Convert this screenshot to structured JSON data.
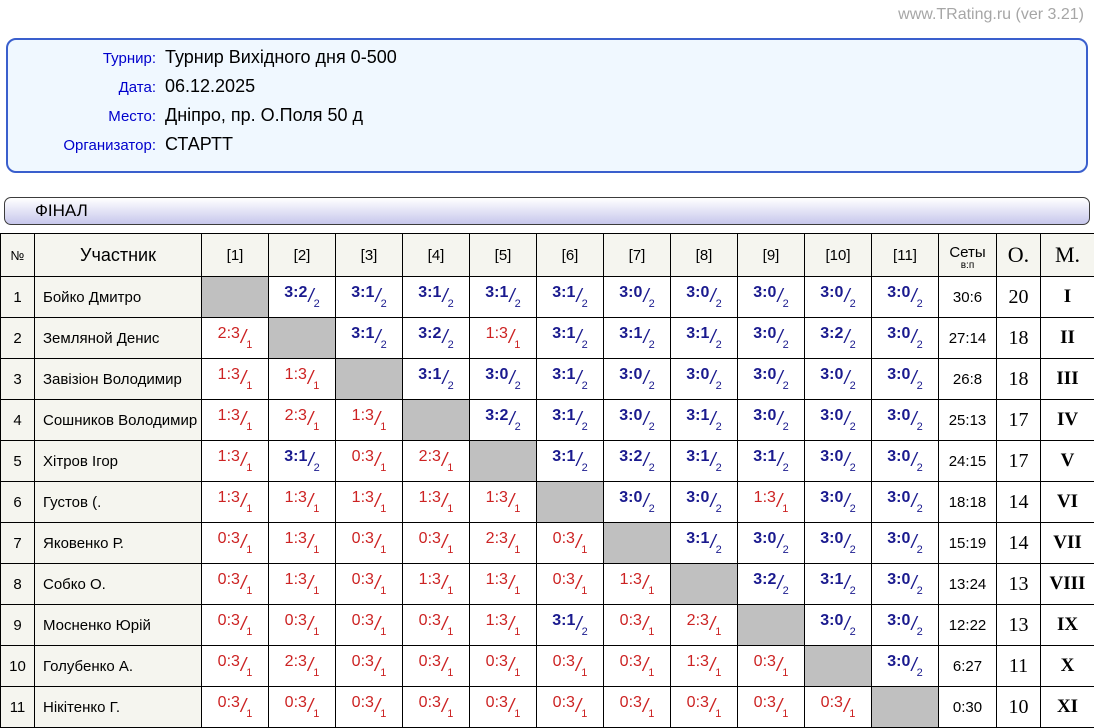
{
  "watermark": "www.TRating.ru (ver 3.21)",
  "info": {
    "rows": [
      {
        "label": "Турнир:",
        "value": "Турнир Вихідного дня 0-500"
      },
      {
        "label": "Дата:",
        "value": "06.12.2025"
      },
      {
        "label": "Место:",
        "value": "Дніпро, пр. О.Поля 50 д"
      },
      {
        "label": "Организатор:",
        "value": "СТАРТТ"
      }
    ]
  },
  "section_title": "ФІНАЛ",
  "colors": {
    "win_score": "#1a1a8e",
    "loss_score": "#cc2222",
    "diagonal_fill": "#c0c0c0",
    "label_blue": "#0000cc",
    "info_border": "#3a5fcd"
  },
  "table": {
    "headers": {
      "num": "№",
      "participant": "Участник",
      "rounds": [
        "[1]",
        "[2]",
        "[3]",
        "[4]",
        "[5]",
        "[6]",
        "[7]",
        "[8]",
        "[9]",
        "[10]",
        "[11]"
      ],
      "sets": "Сеты",
      "sets_sub": "в:п",
      "points": "О.",
      "place": "М."
    },
    "rows": [
      {
        "num": "1",
        "name": "Бойко Дмитро",
        "cells": [
          null,
          [
            "3:2",
            "2",
            "w"
          ],
          [
            "3:1",
            "2",
            "w"
          ],
          [
            "3:1",
            "2",
            "w"
          ],
          [
            "3:1",
            "2",
            "w"
          ],
          [
            "3:1",
            "2",
            "w"
          ],
          [
            "3:0",
            "2",
            "w"
          ],
          [
            "3:0",
            "2",
            "w"
          ],
          [
            "3:0",
            "2",
            "w"
          ],
          [
            "3:0",
            "2",
            "w"
          ],
          [
            "3:0",
            "2",
            "w"
          ]
        ],
        "sets": "30:6",
        "points": "20",
        "place": "I"
      },
      {
        "num": "2",
        "name": "Земляной Денис",
        "cells": [
          [
            "2:3",
            "1",
            "l"
          ],
          null,
          [
            "3:1",
            "2",
            "w"
          ],
          [
            "3:2",
            "2",
            "w"
          ],
          [
            "1:3",
            "1",
            "l"
          ],
          [
            "3:1",
            "2",
            "w"
          ],
          [
            "3:1",
            "2",
            "w"
          ],
          [
            "3:1",
            "2",
            "w"
          ],
          [
            "3:0",
            "2",
            "w"
          ],
          [
            "3:2",
            "2",
            "w"
          ],
          [
            "3:0",
            "2",
            "w"
          ]
        ],
        "sets": "27:14",
        "points": "18",
        "place": "II"
      },
      {
        "num": "3",
        "name": "Завізіон Володимир",
        "cells": [
          [
            "1:3",
            "1",
            "l"
          ],
          [
            "1:3",
            "1",
            "l"
          ],
          null,
          [
            "3:1",
            "2",
            "w"
          ],
          [
            "3:0",
            "2",
            "w"
          ],
          [
            "3:1",
            "2",
            "w"
          ],
          [
            "3:0",
            "2",
            "w"
          ],
          [
            "3:0",
            "2",
            "w"
          ],
          [
            "3:0",
            "2",
            "w"
          ],
          [
            "3:0",
            "2",
            "w"
          ],
          [
            "3:0",
            "2",
            "w"
          ]
        ],
        "sets": "26:8",
        "points": "18",
        "place": "III"
      },
      {
        "num": "4",
        "name": "Сошников Володимир",
        "cells": [
          [
            "1:3",
            "1",
            "l"
          ],
          [
            "2:3",
            "1",
            "l"
          ],
          [
            "1:3",
            "1",
            "l"
          ],
          null,
          [
            "3:2",
            "2",
            "w"
          ],
          [
            "3:1",
            "2",
            "w"
          ],
          [
            "3:0",
            "2",
            "w"
          ],
          [
            "3:1",
            "2",
            "w"
          ],
          [
            "3:0",
            "2",
            "w"
          ],
          [
            "3:0",
            "2",
            "w"
          ],
          [
            "3:0",
            "2",
            "w"
          ]
        ],
        "sets": "25:13",
        "points": "17",
        "place": "IV"
      },
      {
        "num": "5",
        "name": "Хітров Ігор",
        "cells": [
          [
            "1:3",
            "1",
            "l"
          ],
          [
            "3:1",
            "2",
            "w"
          ],
          [
            "0:3",
            "1",
            "l"
          ],
          [
            "2:3",
            "1",
            "l"
          ],
          null,
          [
            "3:1",
            "2",
            "w"
          ],
          [
            "3:2",
            "2",
            "w"
          ],
          [
            "3:1",
            "2",
            "w"
          ],
          [
            "3:1",
            "2",
            "w"
          ],
          [
            "3:0",
            "2",
            "w"
          ],
          [
            "3:0",
            "2",
            "w"
          ]
        ],
        "sets": "24:15",
        "points": "17",
        "place": "V"
      },
      {
        "num": "6",
        "name": "Густов (.",
        "cells": [
          [
            "1:3",
            "1",
            "l"
          ],
          [
            "1:3",
            "1",
            "l"
          ],
          [
            "1:3",
            "1",
            "l"
          ],
          [
            "1:3",
            "1",
            "l"
          ],
          [
            "1:3",
            "1",
            "l"
          ],
          null,
          [
            "3:0",
            "2",
            "w"
          ],
          [
            "3:0",
            "2",
            "w"
          ],
          [
            "1:3",
            "1",
            "l"
          ],
          [
            "3:0",
            "2",
            "w"
          ],
          [
            "3:0",
            "2",
            "w"
          ]
        ],
        "sets": "18:18",
        "points": "14",
        "place": "VI"
      },
      {
        "num": "7",
        "name": "Яковенко Р.",
        "cells": [
          [
            "0:3",
            "1",
            "l"
          ],
          [
            "1:3",
            "1",
            "l"
          ],
          [
            "0:3",
            "1",
            "l"
          ],
          [
            "0:3",
            "1",
            "l"
          ],
          [
            "2:3",
            "1",
            "l"
          ],
          [
            "0:3",
            "1",
            "l"
          ],
          null,
          [
            "3:1",
            "2",
            "w"
          ],
          [
            "3:0",
            "2",
            "w"
          ],
          [
            "3:0",
            "2",
            "w"
          ],
          [
            "3:0",
            "2",
            "w"
          ]
        ],
        "sets": "15:19",
        "points": "14",
        "place": "VII"
      },
      {
        "num": "8",
        "name": "Собко О.",
        "cells": [
          [
            "0:3",
            "1",
            "l"
          ],
          [
            "1:3",
            "1",
            "l"
          ],
          [
            "0:3",
            "1",
            "l"
          ],
          [
            "1:3",
            "1",
            "l"
          ],
          [
            "1:3",
            "1",
            "l"
          ],
          [
            "0:3",
            "1",
            "l"
          ],
          [
            "1:3",
            "1",
            "l"
          ],
          null,
          [
            "3:2",
            "2",
            "w"
          ],
          [
            "3:1",
            "2",
            "w"
          ],
          [
            "3:0",
            "2",
            "w"
          ]
        ],
        "sets": "13:24",
        "points": "13",
        "place": "VIII"
      },
      {
        "num": "9",
        "name": "Мосненко Юрій",
        "cells": [
          [
            "0:3",
            "1",
            "l"
          ],
          [
            "0:3",
            "1",
            "l"
          ],
          [
            "0:3",
            "1",
            "l"
          ],
          [
            "0:3",
            "1",
            "l"
          ],
          [
            "1:3",
            "1",
            "l"
          ],
          [
            "3:1",
            "2",
            "w"
          ],
          [
            "0:3",
            "1",
            "l"
          ],
          [
            "2:3",
            "1",
            "l"
          ],
          null,
          [
            "3:0",
            "2",
            "w"
          ],
          [
            "3:0",
            "2",
            "w"
          ]
        ],
        "sets": "12:22",
        "points": "13",
        "place": "IX"
      },
      {
        "num": "10",
        "name": "Голубенко А.",
        "cells": [
          [
            "0:3",
            "1",
            "l"
          ],
          [
            "2:3",
            "1",
            "l"
          ],
          [
            "0:3",
            "1",
            "l"
          ],
          [
            "0:3",
            "1",
            "l"
          ],
          [
            "0:3",
            "1",
            "l"
          ],
          [
            "0:3",
            "1",
            "l"
          ],
          [
            "0:3",
            "1",
            "l"
          ],
          [
            "1:3",
            "1",
            "l"
          ],
          [
            "0:3",
            "1",
            "l"
          ],
          null,
          [
            "3:0",
            "2",
            "w"
          ]
        ],
        "sets": "6:27",
        "points": "11",
        "place": "X"
      },
      {
        "num": "11",
        "name": "Нікітенко Г.",
        "cells": [
          [
            "0:3",
            "1",
            "l"
          ],
          [
            "0:3",
            "1",
            "l"
          ],
          [
            "0:3",
            "1",
            "l"
          ],
          [
            "0:3",
            "1",
            "l"
          ],
          [
            "0:3",
            "1",
            "l"
          ],
          [
            "0:3",
            "1",
            "l"
          ],
          [
            "0:3",
            "1",
            "l"
          ],
          [
            "0:3",
            "1",
            "l"
          ],
          [
            "0:3",
            "1",
            "l"
          ],
          [
            "0:3",
            "1",
            "l"
          ],
          null
        ],
        "sets": "0:30",
        "points": "10",
        "place": "XI"
      }
    ]
  }
}
